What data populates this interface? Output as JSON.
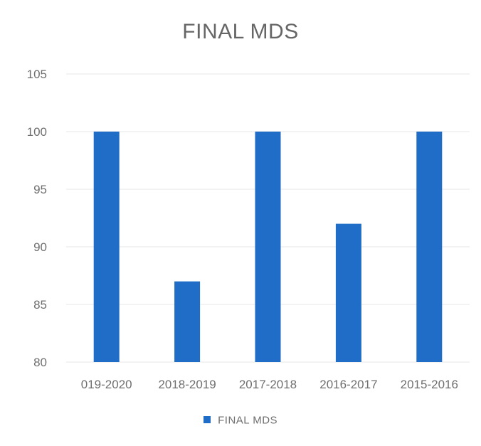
{
  "chart_data": {
    "type": "bar",
    "title": "FINAL MDS",
    "categories": [
      "019-2020",
      "2018-2019",
      "2017-2018",
      "2016-2017",
      "2015-2016"
    ],
    "series": [
      {
        "name": "FINAL MDS",
        "values": [
          100,
          87,
          100,
          92,
          100
        ]
      }
    ],
    "ylim": [
      80,
      105
    ],
    "yticks": [
      80,
      85,
      90,
      95,
      100,
      105
    ],
    "xlabel": "",
    "ylabel": "",
    "grid": true,
    "legend_position": "bottom",
    "bar_color": "#1f6dc7",
    "grid_color": "#e7e7e7"
  }
}
